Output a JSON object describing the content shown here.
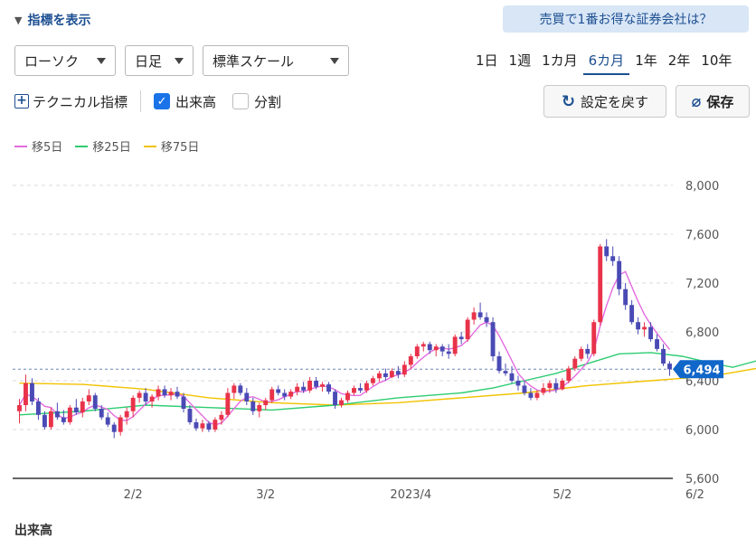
{
  "header": {
    "toggle_label": "指標を表示",
    "promo_label": "売買で1番お得な証券会社は？"
  },
  "controls": {
    "chart_type": "ローソク",
    "interval": "日足",
    "scale": "標準スケール",
    "periods": [
      "1日",
      "1週",
      "1カ月",
      "6カ月",
      "1年",
      "2年",
      "10年"
    ],
    "active_period": "6カ月"
  },
  "toolbar": {
    "technical_label": "テクニカル指標",
    "volume_label": "出来高",
    "volume_checked": true,
    "split_label": "分割",
    "split_checked": false,
    "reset_label": "設定を戻す",
    "save_label": "保存"
  },
  "footer": {
    "volume_title": "出来高"
  },
  "colors": {
    "up": "#e8334a",
    "down": "#4a4ab5",
    "ma5": "#e36be0",
    "ma25": "#2ecc71",
    "ma75": "#f2c200",
    "price_tag": "#1166c9",
    "accent": "#1d4f91"
  },
  "chart_data": {
    "type": "candlestick",
    "y_ticks": [
      "8,000",
      "7,600",
      "7,200",
      "6,800",
      "6,400",
      "6,000",
      "5,600"
    ],
    "y_tick_values": [
      8000,
      7600,
      7200,
      6800,
      6400,
      6000,
      5600
    ],
    "ylim": [
      5600,
      8000
    ],
    "x_ticks": [
      "2/2",
      "3/2",
      "2023/4",
      "5/2",
      "6/2",
      "2023/"
    ],
    "x_tick_index": [
      18,
      39,
      62,
      86,
      107,
      127
    ],
    "current_price_label": "6,494",
    "current_price": 6494,
    "legend": [
      {
        "name": "移5日",
        "color": "#e36be0"
      },
      {
        "name": "移25日",
        "color": "#2ecc71"
      },
      {
        "name": "移75日",
        "color": "#f2c200"
      }
    ],
    "ma25": [
      [
        0,
        6120
      ],
      [
        10,
        6150
      ],
      [
        20,
        6200
      ],
      [
        30,
        6180
      ],
      [
        40,
        6160
      ],
      [
        50,
        6200
      ],
      [
        60,
        6260
      ],
      [
        70,
        6300
      ],
      [
        75,
        6340
      ],
      [
        80,
        6400
      ],
      [
        85,
        6460
      ],
      [
        90,
        6540
      ],
      [
        95,
        6620
      ],
      [
        100,
        6630
      ],
      [
        105,
        6600
      ],
      [
        110,
        6540
      ],
      [
        113,
        6510
      ],
      [
        118,
        6580
      ],
      [
        123,
        6680
      ],
      [
        128,
        6720
      ]
    ],
    "ma75": [
      [
        0,
        6380
      ],
      [
        10,
        6370
      ],
      [
        20,
        6330
      ],
      [
        30,
        6260
      ],
      [
        40,
        6220
      ],
      [
        50,
        6200
      ],
      [
        60,
        6220
      ],
      [
        70,
        6260
      ],
      [
        80,
        6300
      ],
      [
        90,
        6360
      ],
      [
        100,
        6400
      ],
      [
        110,
        6440
      ],
      [
        120,
        6530
      ],
      [
        127,
        6570
      ]
    ],
    "candles": [
      [
        6150,
        6250,
        6050,
        6200
      ],
      [
        6200,
        6450,
        6150,
        6380
      ],
      [
        6380,
        6420,
        6200,
        6230
      ],
      [
        6230,
        6260,
        6080,
        6120
      ],
      [
        6120,
        6150,
        6000,
        6020
      ],
      [
        6020,
        6180,
        6000,
        6150
      ],
      [
        6150,
        6220,
        6080,
        6100
      ],
      [
        6100,
        6160,
        6040,
        6060
      ],
      [
        6060,
        6200,
        6040,
        6180
      ],
      [
        6180,
        6250,
        6120,
        6140
      ],
      [
        6140,
        6260,
        6100,
        6230
      ],
      [
        6230,
        6330,
        6200,
        6280
      ],
      [
        6280,
        6300,
        6150,
        6170
      ],
      [
        6170,
        6200,
        6080,
        6100
      ],
      [
        6100,
        6140,
        6020,
        6040
      ],
      [
        6040,
        6060,
        5930,
        5980
      ],
      [
        5980,
        6120,
        5950,
        6100
      ],
      [
        6100,
        6180,
        6040,
        6150
      ],
      [
        6150,
        6280,
        6100,
        6260
      ],
      [
        6260,
        6320,
        6220,
        6300
      ],
      [
        6300,
        6340,
        6200,
        6230
      ],
      [
        6230,
        6290,
        6180,
        6270
      ],
      [
        6270,
        6360,
        6240,
        6330
      ],
      [
        6330,
        6360,
        6260,
        6280
      ],
      [
        6280,
        6340,
        6240,
        6310
      ],
      [
        6310,
        6350,
        6250,
        6270
      ],
      [
        6270,
        6300,
        6140,
        6170
      ],
      [
        6170,
        6200,
        6040,
        6060
      ],
      [
        6060,
        6090,
        5990,
        6010
      ],
      [
        6010,
        6080,
        5980,
        6050
      ],
      [
        6050,
        6070,
        5980,
        6000
      ],
      [
        6000,
        6100,
        5980,
        6080
      ],
      [
        6080,
        6150,
        6040,
        6120
      ],
      [
        6120,
        6340,
        6100,
        6300
      ],
      [
        6300,
        6380,
        6250,
        6360
      ],
      [
        6360,
        6380,
        6280,
        6300
      ],
      [
        6300,
        6340,
        6200,
        6230
      ],
      [
        6230,
        6260,
        6120,
        6150
      ],
      [
        6150,
        6220,
        6100,
        6200
      ],
      [
        6200,
        6260,
        6160,
        6240
      ],
      [
        6240,
        6350,
        6220,
        6330
      ],
      [
        6330,
        6360,
        6280,
        6300
      ],
      [
        6300,
        6330,
        6240,
        6270
      ],
      [
        6270,
        6330,
        6250,
        6310
      ],
      [
        6310,
        6380,
        6280,
        6350
      ],
      [
        6350,
        6390,
        6300,
        6320
      ],
      [
        6320,
        6430,
        6300,
        6400
      ],
      [
        6400,
        6430,
        6330,
        6350
      ],
      [
        6350,
        6390,
        6310,
        6370
      ],
      [
        6370,
        6390,
        6290,
        6310
      ],
      [
        6310,
        6330,
        6170,
        6200
      ],
      [
        6200,
        6260,
        6180,
        6240
      ],
      [
        6240,
        6320,
        6220,
        6300
      ],
      [
        6300,
        6360,
        6280,
        6340
      ],
      [
        6340,
        6380,
        6300,
        6320
      ],
      [
        6320,
        6400,
        6300,
        6380
      ],
      [
        6380,
        6440,
        6360,
        6420
      ],
      [
        6420,
        6480,
        6390,
        6460
      ],
      [
        6460,
        6500,
        6400,
        6430
      ],
      [
        6430,
        6500,
        6420,
        6480
      ],
      [
        6480,
        6520,
        6420,
        6450
      ],
      [
        6450,
        6560,
        6430,
        6530
      ],
      [
        6530,
        6620,
        6500,
        6600
      ],
      [
        6600,
        6700,
        6580,
        6680
      ],
      [
        6680,
        6720,
        6640,
        6700
      ],
      [
        6700,
        6720,
        6620,
        6650
      ],
      [
        6650,
        6700,
        6600,
        6680
      ],
      [
        6680,
        6700,
        6600,
        6640
      ],
      [
        6640,
        6700,
        6580,
        6620
      ],
      [
        6620,
        6780,
        6600,
        6760
      ],
      [
        6760,
        6800,
        6700,
        6740
      ],
      [
        6740,
        6920,
        6720,
        6900
      ],
      [
        6900,
        7000,
        6860,
        6960
      ],
      [
        6960,
        7040,
        6900,
        6920
      ],
      [
        6920,
        6960,
        6840,
        6880
      ],
      [
        6880,
        6920,
        6560,
        6600
      ],
      [
        6600,
        6640,
        6460,
        6480
      ],
      [
        6480,
        6540,
        6440,
        6460
      ],
      [
        6460,
        6520,
        6380,
        6400
      ],
      [
        6400,
        6440,
        6320,
        6360
      ],
      [
        6360,
        6400,
        6280,
        6300
      ],
      [
        6300,
        6340,
        6240,
        6260
      ],
      [
        6260,
        6320,
        6240,
        6300
      ],
      [
        6300,
        6380,
        6280,
        6340
      ],
      [
        6340,
        6400,
        6300,
        6380
      ],
      [
        6380,
        6420,
        6300,
        6330
      ],
      [
        6330,
        6420,
        6320,
        6400
      ],
      [
        6400,
        6520,
        6380,
        6500
      ],
      [
        6500,
        6600,
        6480,
        6580
      ],
      [
        6580,
        6680,
        6560,
        6660
      ],
      [
        6660,
        6700,
        6580,
        6620
      ],
      [
        6620,
        6900,
        6600,
        6880
      ],
      [
        6880,
        7520,
        6850,
        7500
      ],
      [
        7500,
        7560,
        7380,
        7420
      ],
      [
        7420,
        7500,
        7340,
        7380
      ],
      [
        7380,
        7420,
        7100,
        7150
      ],
      [
        7150,
        7200,
        6980,
        7020
      ],
      [
        7020,
        7060,
        6860,
        6880
      ],
      [
        6880,
        6920,
        6780,
        6820
      ],
      [
        6820,
        6880,
        6760,
        6840
      ],
      [
        6840,
        6880,
        6720,
        6740
      ],
      [
        6740,
        6780,
        6640,
        6660
      ],
      [
        6660,
        6700,
        6520,
        6540
      ],
      [
        6540,
        6560,
        6440,
        6494
      ]
    ]
  }
}
